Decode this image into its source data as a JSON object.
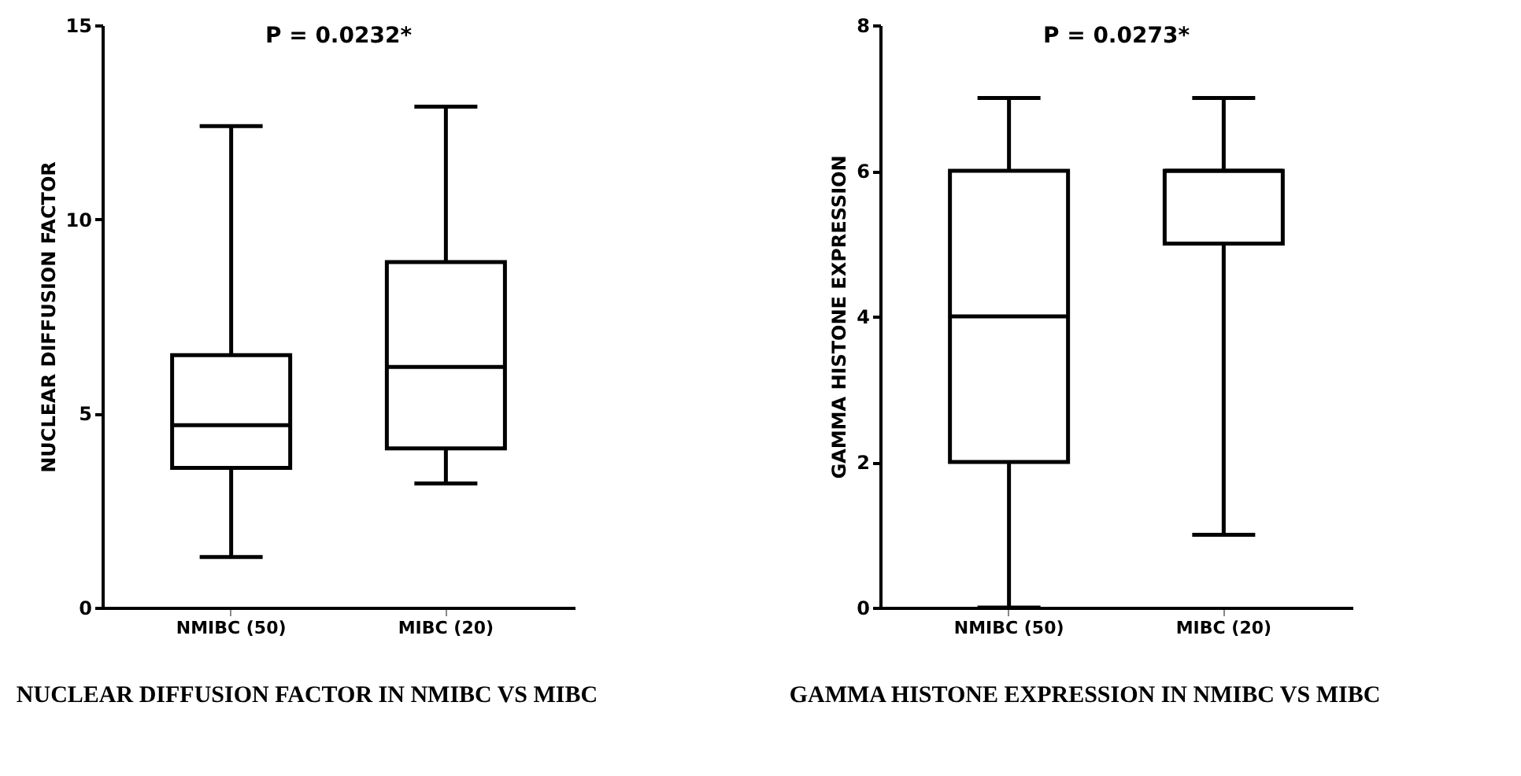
{
  "chart_data": [
    {
      "type": "box",
      "title": "P = 0.0232*",
      "ylabel": "NUCLEAR DIFFUSION FACTOR",
      "categories": [
        "NMIBC (50)",
        "MIBC (20)"
      ],
      "boxes": [
        {
          "low": 1.3,
          "q1": 3.6,
          "median": 4.7,
          "q3": 6.5,
          "high": 12.4
        },
        {
          "low": 3.2,
          "q1": 4.1,
          "median": 6.2,
          "q3": 8.9,
          "high": 12.9
        }
      ],
      "ylim": [
        0,
        15
      ],
      "yticks": [
        0,
        5,
        10,
        15
      ],
      "grid": false,
      "annotations": [
        "NUCLEAR DIFFUSION FACTOR IN NMIBC VS MIBC"
      ]
    },
    {
      "type": "box",
      "title": "P = 0.0273*",
      "ylabel": "GAMMA HISTONE EXPRESSION",
      "categories": [
        "NMIBC (50)",
        "MIBC (20)"
      ],
      "boxes": [
        {
          "low": 0,
          "q1": 2,
          "median": 4,
          "q3": 6,
          "high": 7
        },
        {
          "low": 1,
          "q1": 5,
          "median": 6,
          "q3": 6,
          "high": 7
        }
      ],
      "ylim": [
        0,
        8
      ],
      "yticks": [
        0,
        2,
        4,
        6,
        8
      ],
      "grid": false,
      "annotations": [
        "GAMMA HISTONE EXPRESSION IN NMIBC VS MIBC"
      ]
    }
  ]
}
